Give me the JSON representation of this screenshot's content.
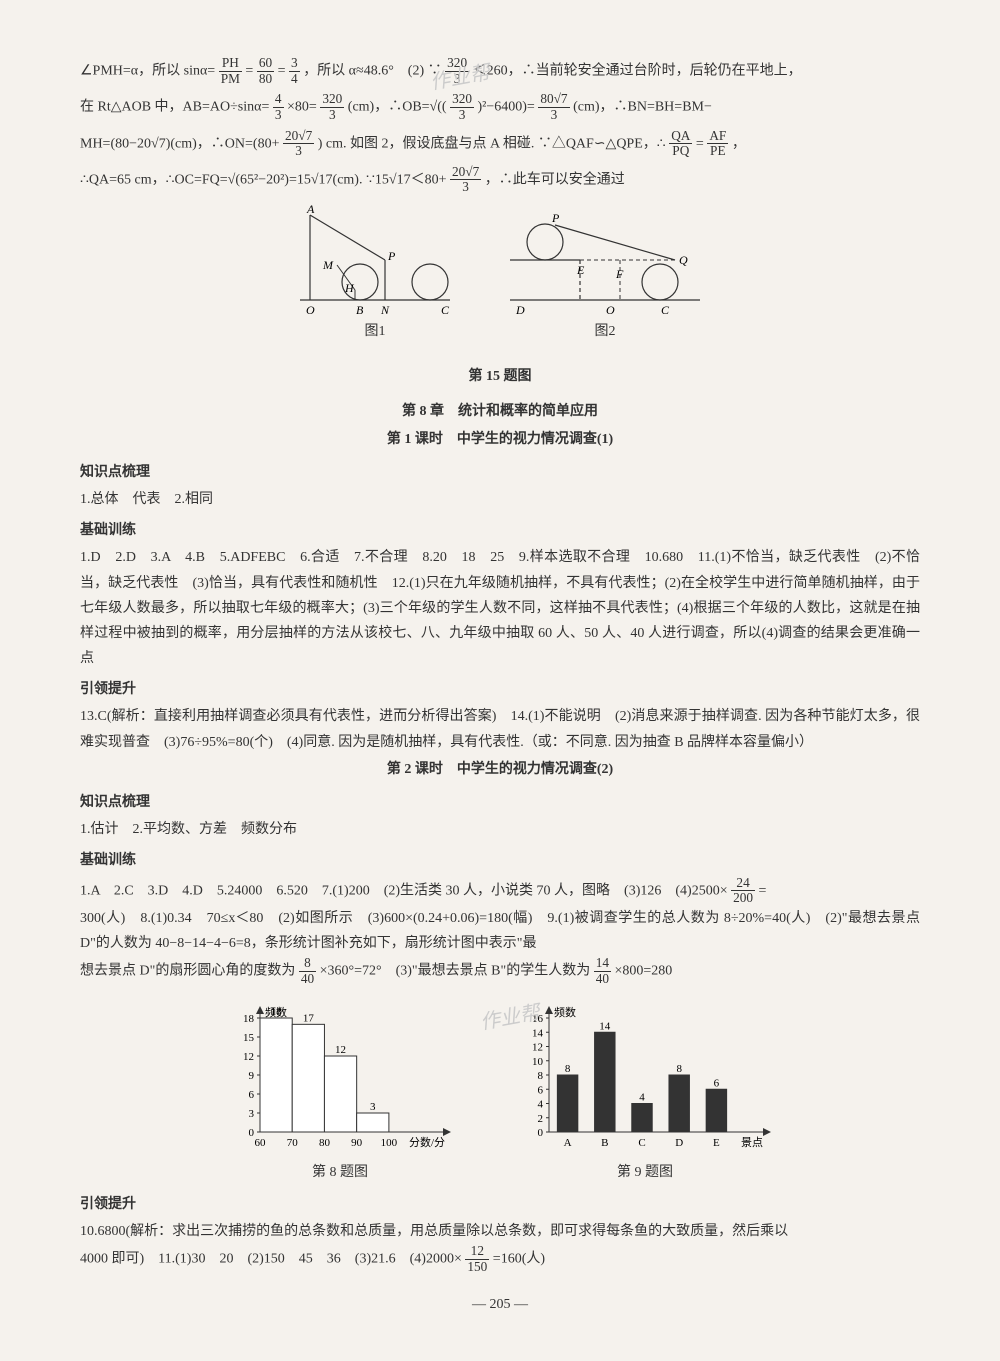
{
  "watermarks": [
    "作业帮",
    "作业帮"
  ],
  "top_solution": {
    "line1_prefix": "∠PMH=α，所以 sinα=",
    "frac1": {
      "n": "PH",
      "d": "PM"
    },
    "eq1": "=",
    "frac2": {
      "n": "60",
      "d": "80"
    },
    "eq2": "=",
    "frac3": {
      "n": "3",
      "d": "4"
    },
    "line1_mid": "，所以 α≈48.6°　(2) ∵",
    "frac4": {
      "n": "320",
      "d": "3"
    },
    "line1_end": "＜260，∴当前轮安全通过台阶时，后轮仍在平地上，",
    "line2_prefix": "在 Rt△AOB 中，AB=AO÷sinα=",
    "frac5": {
      "n": "4",
      "d": "3"
    },
    "line2_a": "×80=",
    "frac6": {
      "n": "320",
      "d": "3"
    },
    "line2_b": "(cm)，∴OB=√((",
    "frac6b": {
      "n": "320",
      "d": "3"
    },
    "line2_c": ")²−6400)=",
    "frac7": {
      "n": "80√7",
      "d": "3"
    },
    "line2_d": "(cm)，∴BN=BH=BM−",
    "line3_prefix": "MH=(80−20√7)(cm)，∴ON=(80+",
    "frac8": {
      "n": "20√7",
      "d": "3"
    },
    "line3_mid": ") cm. 如图 2，假设底盘与点 A 相碰. ∵△QAF∽△QPE，∴",
    "frac9": {
      "n": "QA",
      "d": "PQ"
    },
    "eq3": "=",
    "frac10": {
      "n": "AF",
      "d": "PE"
    },
    "line3_end": "，",
    "line4_prefix": "∴QA=65 cm，∴OC=FQ=√(65²−20²)=15√17(cm). ∵15√17＜80+",
    "frac11": {
      "n": "20√7",
      "d": "3"
    },
    "line4_end": "，∴此车可以安全通过"
  },
  "figures": {
    "fig1": {
      "caption": "图1",
      "labels": {
        "A": "A",
        "M": "M",
        "P": "P",
        "H": "H",
        "O": "O",
        "B": "B",
        "N": "N",
        "C": "C"
      },
      "stroke": "#333",
      "linewidth": 1.2
    },
    "fig2": {
      "caption": "图2",
      "labels": {
        "P": "P",
        "E": "E",
        "F": "F",
        "Q": "Q",
        "D": "D",
        "O": "O",
        "C": "C"
      },
      "stroke": "#333",
      "linewidth": 1.2
    },
    "main_caption": "第 15 题图"
  },
  "chapter": {
    "title": "第 8 章　统计和概率的简单应用",
    "lesson1_title": "第 1 课时　中学生的视力情况调查(1)"
  },
  "lesson1": {
    "kdl_header": "知识点梳理",
    "kdl_text": "1.总体　代表　2.相同",
    "jcxl_header": "基础训练",
    "jcxl_text": "1.D　2.D　3.A　4.B　5.ADFEBC　6.合适　7.不合理　8.20　18　25　9.样本选取不合理　10.680　11.(1)不恰当，缺乏代表性　(2)不恰当，缺乏代表性　(3)恰当，具有代表性和随机性　12.(1)只在九年级随机抽样，不具有代表性；(2)在全校学生中进行简单随机抽样，由于七年级人数最多，所以抽取七年级的概率大；(3)三个年级的学生人数不同，这样抽不具代表性；(4)根据三个年级的人数比，这就是在抽样过程中被抽到的概率，用分层抽样的方法从该校七、八、九年级中抽取 60 人、50 人、40 人进行调查，所以(4)调查的结果会更准确一点",
    "ylts_header": "引领提升",
    "ylts_text": "13.C(解析：直接利用抽样调查必须具有代表性，进而分析得出答案)　14.(1)不能说明　(2)消息来源于抽样调查. 因为各种节能灯太多，很难实现普查　(3)76÷95%=80(个)　(4)同意. 因为是随机抽样，具有代表性.（或：不同意. 因为抽查 B 品牌样本容量偏小）"
  },
  "lesson2": {
    "title": "第 2 课时　中学生的视力情况调查(2)",
    "kdl_header": "知识点梳理",
    "kdl_text": "1.估计　2.平均数、方差　频数分布",
    "jcxl_header": "基础训练",
    "jcxl_line1_prefix": "1.A　2.C　3.D　4.D　5.24000　6.520　7.(1)200　(2)生活类 30 人，小说类 70 人，图略　(3)126　(4)2500×",
    "frac1": {
      "n": "24",
      "d": "200"
    },
    "jcxl_line1_end": "=",
    "jcxl_line2": "300(人)　8.(1)0.34　70≤x＜80　(2)如图所示　(3)600×(0.24+0.06)=180(幅)　9.(1)被调查学生的总人数为 8÷20%=40(人)　(2)\"最想去景点 D\"的人数为 40−8−14−4−6=8，条形统计图补充如下，扇形统计图中表示\"最",
    "jcxl_line3_prefix": "想去景点 D\"的扇形圆心角的度数为",
    "frac2": {
      "n": "8",
      "d": "40"
    },
    "jcxl_line3_mid": "×360°=72°　(3)\"最想去景点 B\"的学生人数为",
    "frac3": {
      "n": "14",
      "d": "40"
    },
    "jcxl_line3_end": "×800=280"
  },
  "chart8": {
    "type": "bar",
    "y_label": "频数",
    "x_label": "分数/分",
    "categories": [
      "60",
      "70",
      "80",
      "90",
      "100"
    ],
    "values": [
      18,
      17,
      12,
      3
    ],
    "value_labels": [
      "18",
      "17",
      "12",
      "3"
    ],
    "ylim": [
      0,
      18
    ],
    "yticks": [
      0,
      3,
      6,
      9,
      12,
      15,
      18
    ],
    "bar_color": "#ffffff",
    "bar_border": "#333",
    "axis_color": "#333",
    "caption": "第 8 题图",
    "font_size": 11
  },
  "chart9": {
    "type": "bar",
    "y_label": "频数",
    "x_label": "景点",
    "categories": [
      "A",
      "B",
      "C",
      "D",
      "E"
    ],
    "values": [
      8,
      14,
      4,
      8,
      6
    ],
    "value_labels": [
      "8",
      "14",
      "4",
      "8",
      "6"
    ],
    "ylim": [
      0,
      16
    ],
    "yticks": [
      0,
      2,
      4,
      6,
      8,
      10,
      12,
      14,
      16
    ],
    "bar_color": "#333333",
    "bar_border": "#333",
    "axis_color": "#333",
    "caption": "第 9 题图",
    "font_size": 11
  },
  "lesson2b": {
    "ylts_header": "引领提升",
    "ylts_line1": "10.6800(解析：求出三次捕捞的鱼的总条数和总质量，用总质量除以总条数，即可求得每条鱼的大致质量，然后乘以",
    "ylts_line2_prefix": "4000 即可)　11.(1)30　20　(2)150　45　36　(3)21.6　(4)2000×",
    "frac1": {
      "n": "12",
      "d": "150"
    },
    "ylts_line2_end": "=160(人)"
  },
  "page_number": "— 205 —"
}
